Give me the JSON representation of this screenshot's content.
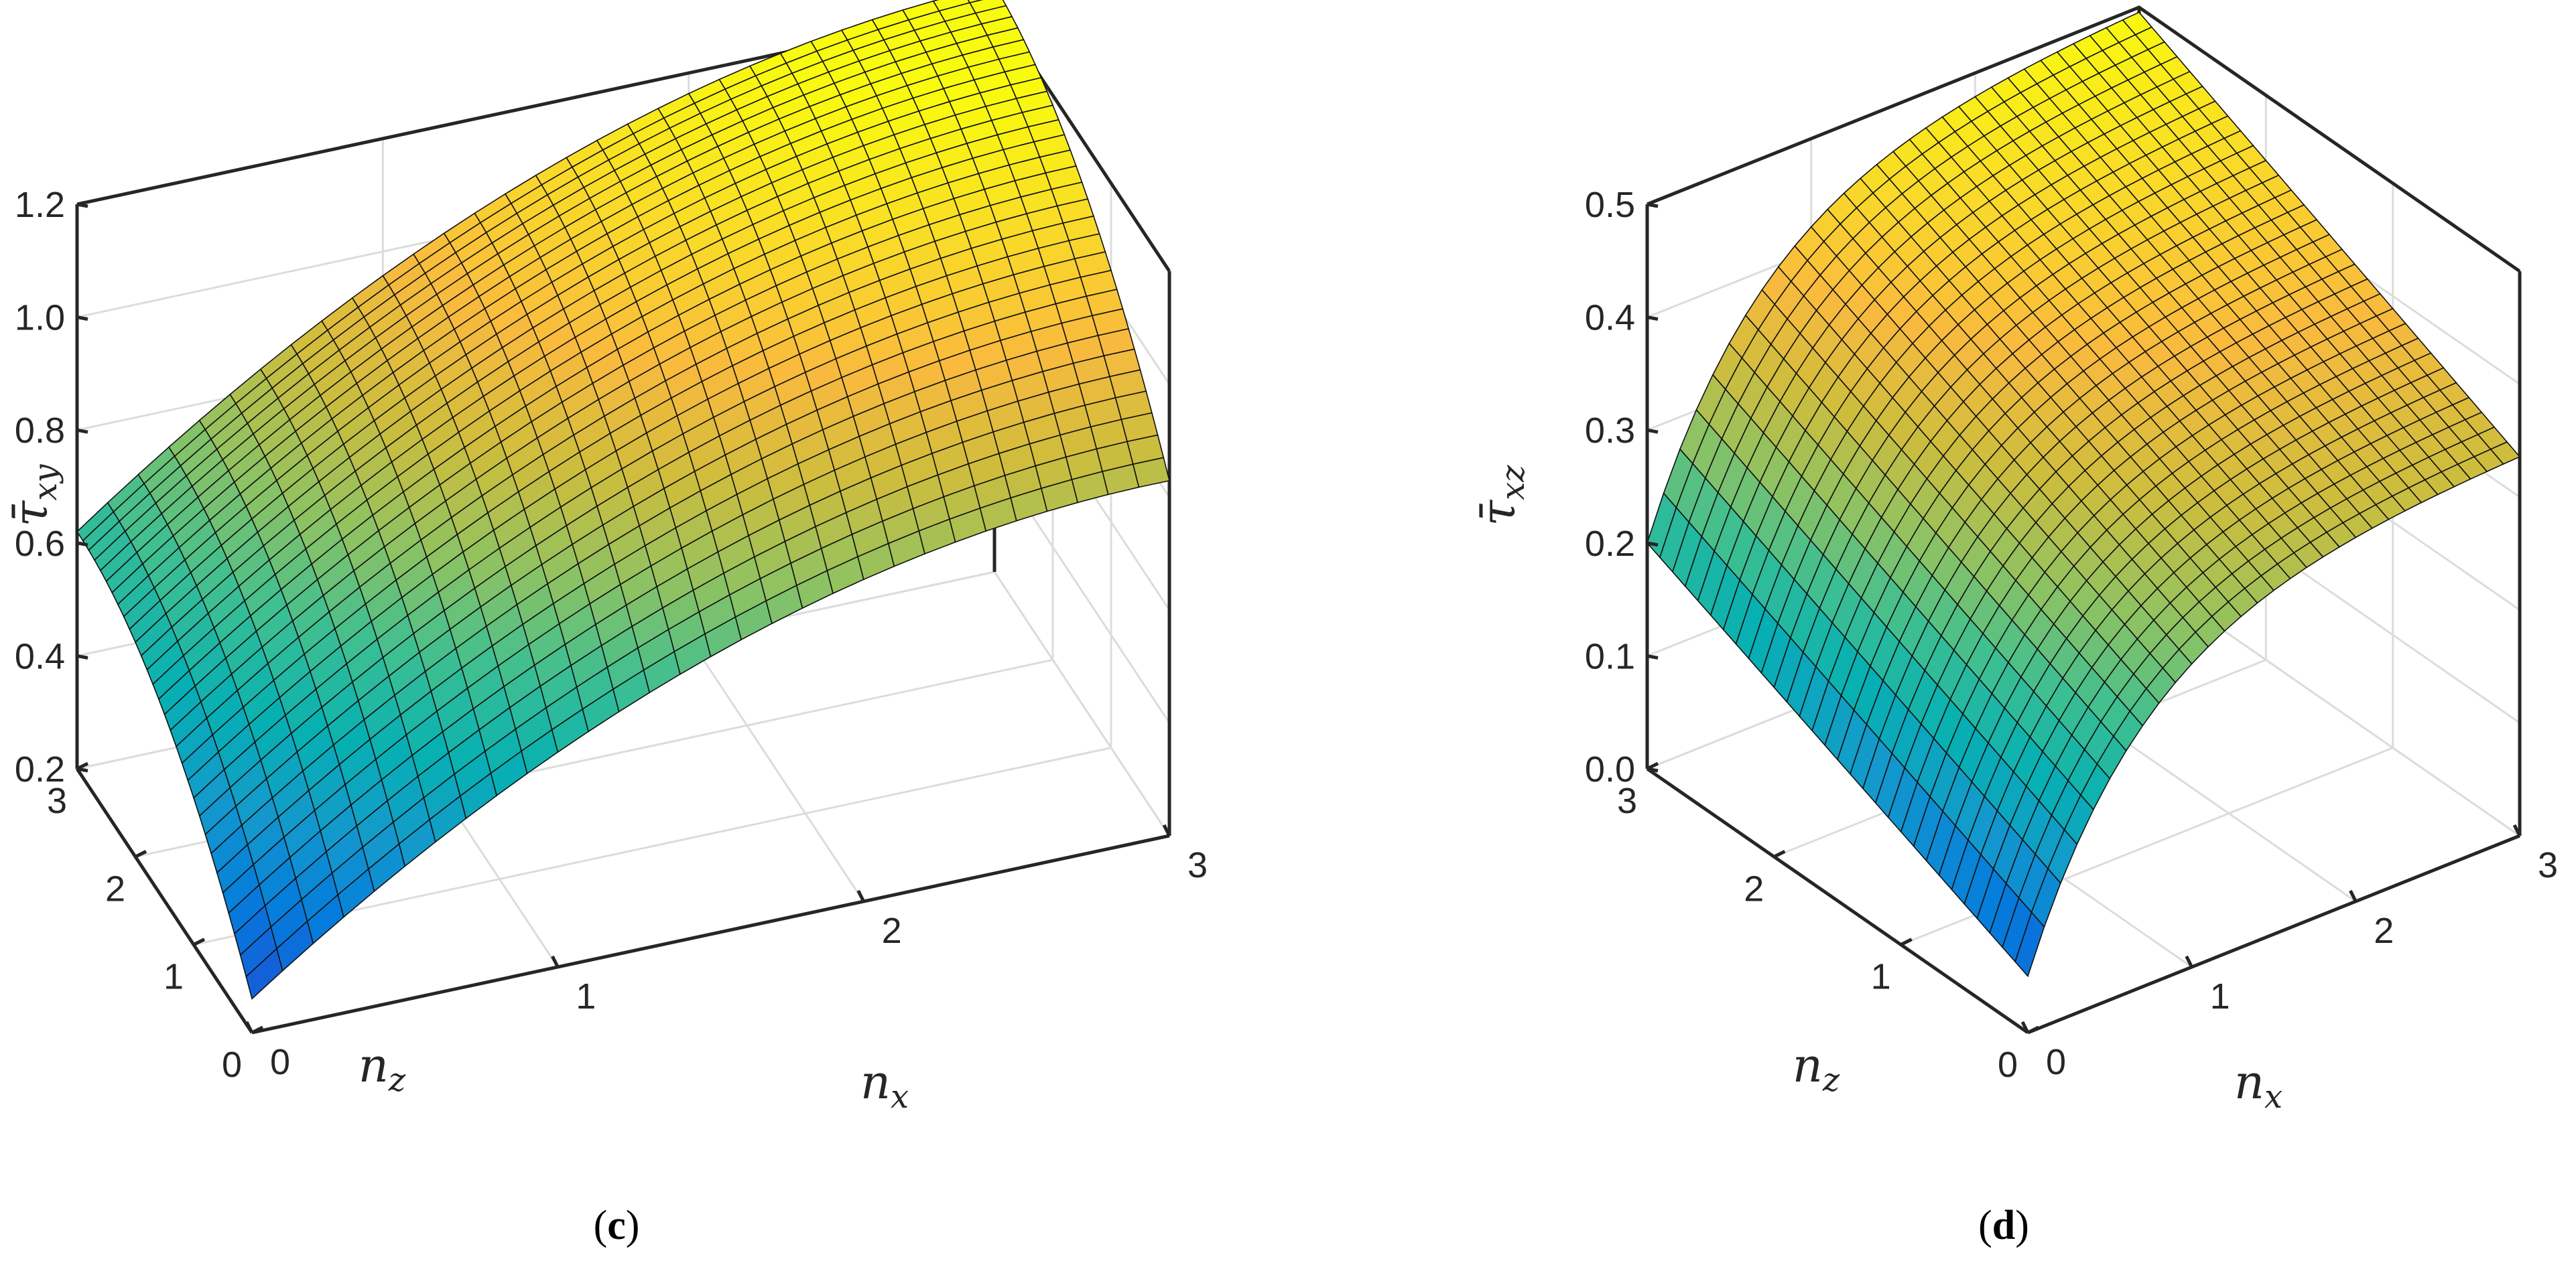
{
  "chart_data": [
    {
      "type": "surface",
      "panel": "c",
      "caption": "c",
      "zlabel": "τ̄",
      "zlabel_sub": "xy",
      "xlabel": "n",
      "xlabel_sub": "x",
      "ylabel": "n",
      "ylabel_sub": "z",
      "xticks": [
        "0",
        "1",
        "2",
        "3"
      ],
      "yticks": [
        "0",
        "1",
        "2",
        "3"
      ],
      "zticks": [
        "0.2",
        "0.4",
        "0.6",
        "0.8",
        "1.0",
        "1.2"
      ],
      "xlim": [
        0,
        3
      ],
      "ylim": [
        0,
        3
      ],
      "zlim": [
        0.2,
        1.2
      ],
      "corner_values": {
        "x0_z0": 0.26,
        "x3_z0": 0.85,
        "x0_z3": 0.62,
        "x3_z3": 1.2
      },
      "grid": true,
      "colormap": "parula"
    },
    {
      "type": "surface",
      "panel": "d",
      "caption": "d",
      "zlabel": "τ̄",
      "zlabel_sub": "xz",
      "xlabel": "n",
      "xlabel_sub": "x",
      "ylabel": "n",
      "ylabel_sub": "z",
      "xticks": [
        "0",
        "1",
        "2",
        "3"
      ],
      "yticks": [
        "0",
        "1",
        "2",
        "3"
      ],
      "zticks": [
        "0.0",
        "0.1",
        "0.2",
        "0.3",
        "0.4",
        "0.5"
      ],
      "xlim": [
        0,
        3
      ],
      "ylim": [
        0,
        3
      ],
      "zlim": [
        0.0,
        0.5
      ],
      "corner_values": {
        "x0_z0": 0.05,
        "x3_z0": 0.34,
        "x0_z3": 0.2,
        "x3_z3": 0.5
      },
      "grid": true,
      "colormap": "parula"
    }
  ]
}
